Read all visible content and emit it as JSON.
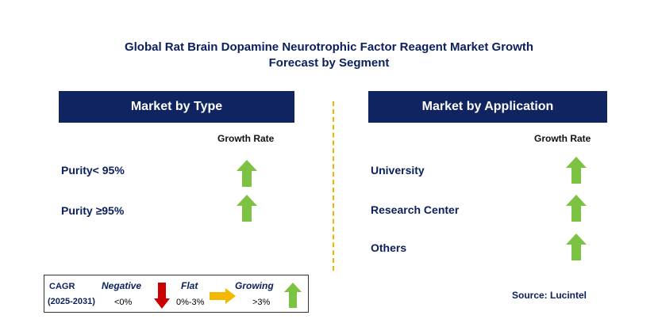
{
  "title": {
    "line1": "Global Rat Brain Dopamine Neurotrophic Factor Reagent Market Growth",
    "line2": "Forecast by Segment"
  },
  "left_panel": {
    "header": "Market by Type",
    "growth_label": "Growth Rate",
    "rows": [
      {
        "label": "Purity< 95%",
        "trend": "growing"
      },
      {
        "label": "Purity ≥95%",
        "trend": "growing"
      }
    ]
  },
  "right_panel": {
    "header": "Market by Application",
    "growth_label": "Growth Rate",
    "rows": [
      {
        "label": "University",
        "trend": "growing"
      },
      {
        "label": "Research Center",
        "trend": "growing"
      },
      {
        "label": "Others",
        "trend": "growing"
      }
    ]
  },
  "legend": {
    "cagr": "CAGR",
    "period": "(2025-2031)",
    "negative": {
      "label": "Negative",
      "range": "<0%",
      "icon": "red-down-arrow-icon",
      "color": "#cc0000"
    },
    "flat": {
      "label": "Flat",
      "range": "0%-3%",
      "icon": "orange-right-arrow-icon",
      "color": "#f5b800"
    },
    "growing": {
      "label": "Growing",
      "range": ">3%",
      "icon": "green-up-arrow-icon",
      "color": "#7cc243"
    }
  },
  "source": "Source: Lucintel",
  "colors": {
    "header_bg": "#0f2461",
    "title": "#0b1f5c",
    "growing": "#7cc243",
    "divider": "#f0b400"
  }
}
